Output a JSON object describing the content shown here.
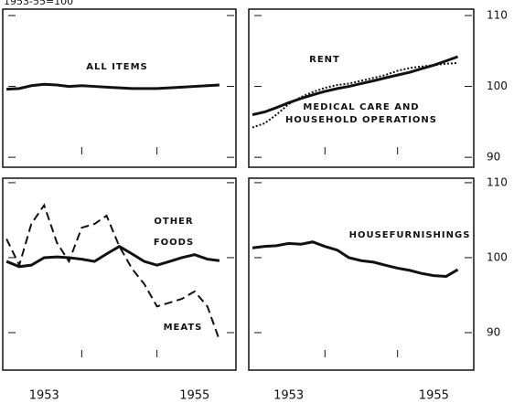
{
  "subtitle": "1953-55=100",
  "chart_data": [
    {
      "type": "line",
      "xlim": [
        1952.95,
        1956.05
      ],
      "ylim": [
        88.6,
        110.9
      ],
      "yticks": [
        90,
        100,
        110
      ],
      "xticks": [
        1954,
        1955
      ],
      "tick_labels": false,
      "x": [
        1953.0,
        1953.17,
        1953.33,
        1953.5,
        1953.67,
        1953.83,
        1954.0,
        1954.17,
        1954.33,
        1954.5,
        1954.67,
        1954.83,
        1955.0,
        1955.17,
        1955.33,
        1955.5,
        1955.67,
        1955.83
      ],
      "series": [
        {
          "label_lines": [
            "ALL ITEMS"
          ],
          "color": "#111",
          "style": "solid",
          "values": [
            99.6,
            99.7,
            100.1,
            100.3,
            100.2,
            100.0,
            100.1,
            100.0,
            99.9,
            99.8,
            99.7,
            99.7,
            99.7,
            99.8,
            99.9,
            100.0,
            100.1,
            100.2
          ]
        }
      ]
    },
    {
      "type": "line",
      "xlim": [
        1952.95,
        1956.05
      ],
      "ylim": [
        88.6,
        110.9
      ],
      "yticks": [
        90,
        100,
        110
      ],
      "xticks": [
        1954,
        1955
      ],
      "tick_labels": true,
      "x": [
        1953.0,
        1953.17,
        1953.33,
        1953.5,
        1953.67,
        1953.83,
        1954.0,
        1954.17,
        1954.33,
        1954.5,
        1954.67,
        1954.83,
        1955.0,
        1955.17,
        1955.33,
        1955.5,
        1955.67,
        1955.83
      ],
      "series": [
        {
          "label_lines": [
            "RENT"
          ],
          "color": "#111",
          "style": "solid",
          "values": [
            96.0,
            96.4,
            97.0,
            97.7,
            98.3,
            98.8,
            99.3,
            99.7,
            100.0,
            100.4,
            100.8,
            101.2,
            101.6,
            102.0,
            102.5,
            103.0,
            103.6,
            104.2
          ]
        },
        {
          "label_lines": [
            "MEDICAL CARE AND",
            "HOUSEHOLD OPERATIONS"
          ],
          "color": "#111",
          "style": "dotted",
          "values": [
            94.2,
            94.8,
            96.0,
            97.5,
            98.5,
            99.2,
            99.8,
            100.2,
            100.4,
            100.8,
            101.2,
            101.6,
            102.2,
            102.6,
            102.8,
            103.0,
            103.2,
            103.3
          ]
        }
      ]
    },
    {
      "type": "line",
      "xlim": [
        1952.95,
        1956.05
      ],
      "ylim": [
        85,
        110.6
      ],
      "yticks": [
        90,
        100,
        110
      ],
      "xticks": [
        1954,
        1955
      ],
      "tick_labels": false,
      "year_labels": [
        {
          "value": 1953.5,
          "label": "1953"
        },
        {
          "value": 1955.5,
          "label": "1955"
        }
      ],
      "x": [
        1953.0,
        1953.17,
        1953.33,
        1953.5,
        1953.67,
        1953.83,
        1954.0,
        1954.17,
        1954.33,
        1954.5,
        1954.67,
        1954.83,
        1955.0,
        1955.17,
        1955.33,
        1955.5,
        1955.67,
        1955.83
      ],
      "series": [
        {
          "label_lines": [
            "OTHER",
            "FOODS"
          ],
          "color": "#111",
          "style": "solid",
          "values": [
            99.5,
            98.8,
            99.0,
            100.0,
            100.1,
            100.0,
            99.8,
            99.5,
            100.5,
            101.5,
            100.5,
            99.5,
            99.0,
            99.5,
            100.0,
            100.4,
            99.8,
            99.6
          ]
        },
        {
          "label_lines": [
            "MEATS"
          ],
          "color": "#111",
          "style": "dashed",
          "values": [
            102.5,
            99.0,
            104.5,
            107.0,
            102.0,
            99.5,
            104.0,
            104.5,
            105.6,
            101.5,
            98.5,
            96.5,
            93.5,
            94.0,
            94.5,
            95.5,
            93.5,
            89.0
          ]
        }
      ]
    },
    {
      "type": "line",
      "xlim": [
        1952.95,
        1956.05
      ],
      "ylim": [
        85,
        110.6
      ],
      "yticks": [
        90,
        100,
        110
      ],
      "xticks": [
        1954,
        1955
      ],
      "tick_labels": true,
      "year_labels": [
        {
          "value": 1953.5,
          "label": "1953"
        },
        {
          "value": 1955.5,
          "label": "1955"
        }
      ],
      "x": [
        1953.0,
        1953.17,
        1953.33,
        1953.5,
        1953.67,
        1953.83,
        1954.0,
        1954.17,
        1954.33,
        1954.5,
        1954.67,
        1954.83,
        1955.0,
        1955.17,
        1955.33,
        1955.5,
        1955.67,
        1955.83
      ],
      "series": [
        {
          "label_lines": [
            "HOUSEFURNISHINGS"
          ],
          "color": "#111",
          "style": "solid",
          "values": [
            101.3,
            101.5,
            101.6,
            101.9,
            101.8,
            102.1,
            101.5,
            101.0,
            100.0,
            99.6,
            99.4,
            99.0,
            98.6,
            98.3,
            97.9,
            97.6,
            97.5,
            98.4
          ]
        }
      ]
    }
  ]
}
